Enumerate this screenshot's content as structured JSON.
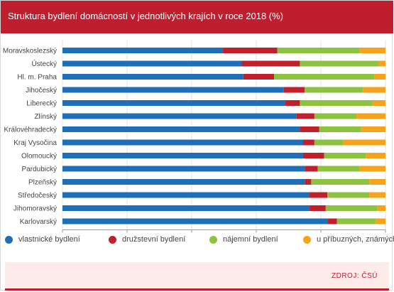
{
  "title": "Struktura bydlení domácností v jednotlivých krajích v roce 2018 (%)",
  "source": "ZDROJ: ČSÚ",
  "colors": {
    "header": "#bf1e2e",
    "series": [
      "#1f6fb8",
      "#c01f2e",
      "#8cc23f",
      "#f7a21b"
    ]
  },
  "chart_data": {
    "type": "bar",
    "orientation": "horizontal",
    "stacked": true,
    "title": "Struktura bydlení domácností v jednotlivých krajích v roce 2018 (%)",
    "xlim": [
      0,
      100
    ],
    "xticks": [
      0,
      20,
      40,
      60,
      80,
      100
    ],
    "grid": true,
    "legend_position": "bottom",
    "categories": [
      "Moravskoslezský",
      "Ústecký",
      "Hl. m. Praha",
      "Jihočeský",
      "Liberecký",
      "Zlínský",
      "Královéhradecký",
      "Kraj Vysočina",
      "Olomoucký",
      "Pardubický",
      "Plzeňský",
      "Středočeský",
      "Jihomoravský",
      "Karlovarský"
    ],
    "series": [
      {
        "name": "vlastnické bydlení",
        "values": [
          49.5,
          55.5,
          56,
          68.5,
          69,
          72.5,
          73.5,
          74.5,
          74.5,
          75,
          75,
          76.5,
          76.5,
          82
        ]
      },
      {
        "name": "družstevní bydlení",
        "values": [
          17,
          18,
          9.5,
          6.5,
          4.5,
          5.5,
          6,
          3.5,
          6.5,
          4,
          2,
          5.5,
          5,
          3
        ]
      },
      {
        "name": "nájemní bydlení",
        "values": [
          25.5,
          24.5,
          31,
          18,
          22.5,
          13,
          13,
          9,
          13,
          13,
          18,
          13,
          16,
          12
        ]
      },
      {
        "name": "u příbuzných, známých",
        "values": [
          8,
          2,
          3.5,
          7,
          4,
          9,
          7.5,
          13,
          6,
          8,
          5,
          5,
          2.5,
          3
        ]
      }
    ]
  }
}
